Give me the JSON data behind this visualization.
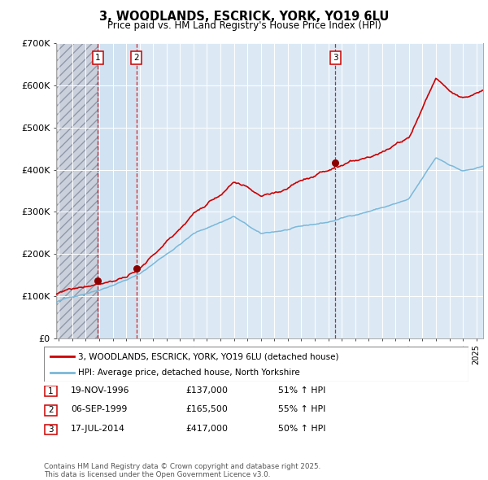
{
  "title": "3, WOODLANDS, ESCRICK, YORK, YO19 6LU",
  "subtitle": "Price paid vs. HM Land Registry's House Price Index (HPI)",
  "bg_color": "#ffffff",
  "plot_bg_color": "#dce9f5",
  "grid_color": "#ffffff",
  "red_line_color": "#cc0000",
  "blue_line_color": "#7ab8d9",
  "sale_marker_color": "#8b0000",
  "sale1_date_num": 1996.9,
  "sale1_price": 137000,
  "sale1_label": "1",
  "sale2_date_num": 1999.75,
  "sale2_price": 165500,
  "sale2_label": "2",
  "sale3_date_num": 2014.54,
  "sale3_price": 417000,
  "sale3_label": "3",
  "xmin": 1993.8,
  "xmax": 2025.5,
  "ymin": 0,
  "ymax": 700000,
  "yticks": [
    0,
    100000,
    200000,
    300000,
    400000,
    500000,
    600000,
    700000
  ],
  "ytick_labels": [
    "£0",
    "£100K",
    "£200K",
    "£300K",
    "£400K",
    "£500K",
    "£600K",
    "£700K"
  ],
  "legend_line1": "3, WOODLANDS, ESCRICK, YORK, YO19 6LU (detached house)",
  "legend_line2": "HPI: Average price, detached house, North Yorkshire",
  "table_rows": [
    [
      "1",
      "19-NOV-1996",
      "£137,000",
      "51% ↑ HPI"
    ],
    [
      "2",
      "06-SEP-1999",
      "£165,500",
      "55% ↑ HPI"
    ],
    [
      "3",
      "17-JUL-2014",
      "£417,000",
      "50% ↑ HPI"
    ]
  ],
  "footer": "Contains HM Land Registry data © Crown copyright and database right 2025.\nThis data is licensed under the Open Government Licence v3.0.",
  "dashed_line_color": "#cc0000"
}
